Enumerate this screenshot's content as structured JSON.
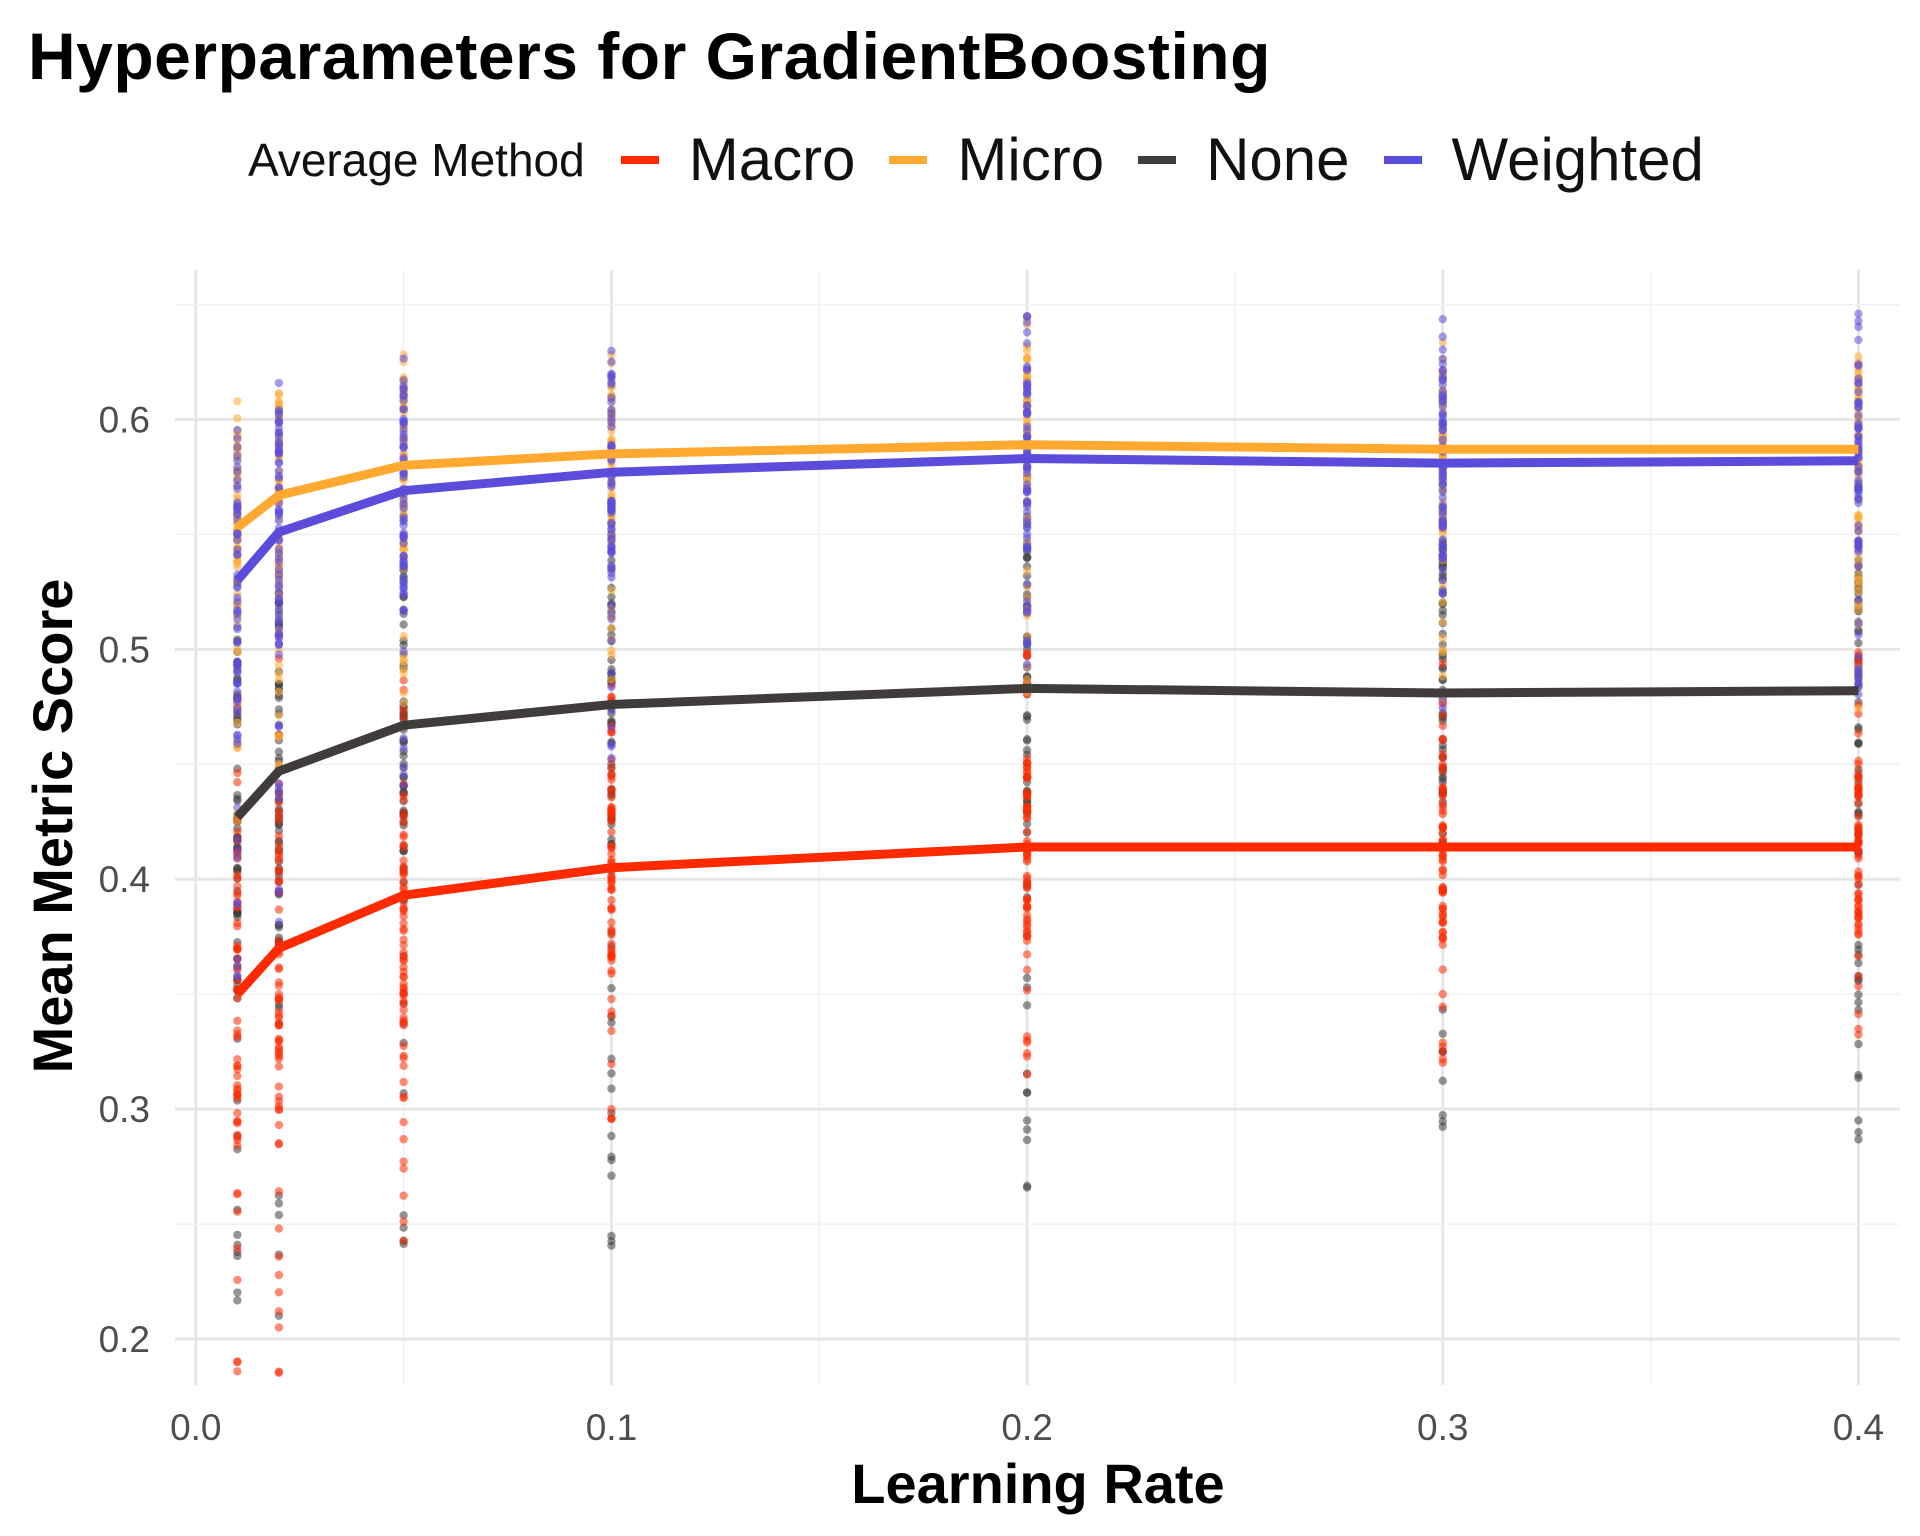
{
  "chart_data": {
    "type": "line",
    "title": "Hyperparameters for GradientBoosting",
    "xlabel": "Learning Rate",
    "ylabel": "Mean Metric Score",
    "xlim": [
      -0.005,
      0.41
    ],
    "ylim": [
      0.18,
      0.665
    ],
    "x_ticks": [
      "0.0",
      "0.1",
      "0.2",
      "0.3",
      "0.4"
    ],
    "x_tick_values": [
      0.0,
      0.1,
      0.2,
      0.3,
      0.4
    ],
    "y_ticks": [
      "0.2",
      "0.3",
      "0.4",
      "0.5",
      "0.6"
    ],
    "y_tick_values": [
      0.2,
      0.3,
      0.4,
      0.5,
      0.6
    ],
    "grid": true,
    "legend_title": "Average Method",
    "legend_position": "top",
    "x": [
      0.01,
      0.02,
      0.05,
      0.1,
      0.2,
      0.3,
      0.4
    ],
    "series": [
      {
        "name": "Macro",
        "color": "#ff2a00",
        "values": [
          0.35,
          0.37,
          0.393,
          0.405,
          0.414,
          0.414,
          0.414
        ],
        "range": [
          [
            0.185,
            0.5
          ],
          [
            0.185,
            0.51
          ],
          [
            0.235,
            0.49
          ],
          [
            0.29,
            0.49
          ],
          [
            0.315,
            0.5
          ],
          [
            0.32,
            0.51
          ],
          [
            0.325,
            0.5
          ]
        ]
      },
      {
        "name": "Micro",
        "color": "#ffa931",
        "values": [
          0.553,
          0.567,
          0.58,
          0.585,
          0.589,
          0.587,
          0.587
        ],
        "range": [
          [
            0.42,
            0.608
          ],
          [
            0.44,
            0.616
          ],
          [
            0.45,
            0.63
          ],
          [
            0.46,
            0.636
          ],
          [
            0.47,
            0.648
          ],
          [
            0.47,
            0.65
          ],
          [
            0.47,
            0.655
          ]
        ]
      },
      {
        "name": "None",
        "color": "#403c3c",
        "values": [
          0.427,
          0.447,
          0.467,
          0.476,
          0.483,
          0.481,
          0.482
        ],
        "range": [
          [
            0.19,
            0.54
          ],
          [
            0.2,
            0.55
          ],
          [
            0.22,
            0.56
          ],
          [
            0.24,
            0.57
          ],
          [
            0.265,
            0.58
          ],
          [
            0.29,
            0.59
          ],
          [
            0.28,
            0.6
          ]
        ]
      },
      {
        "name": "Weighted",
        "color": "#5b4cdc",
        "values": [
          0.53,
          0.551,
          0.569,
          0.577,
          0.583,
          0.581,
          0.582
        ],
        "range": [
          [
            0.33,
            0.6
          ],
          [
            0.38,
            0.617
          ],
          [
            0.43,
            0.633
          ],
          [
            0.45,
            0.638
          ],
          [
            0.47,
            0.65
          ],
          [
            0.47,
            0.652
          ],
          [
            0.47,
            0.658
          ]
        ]
      }
    ]
  }
}
